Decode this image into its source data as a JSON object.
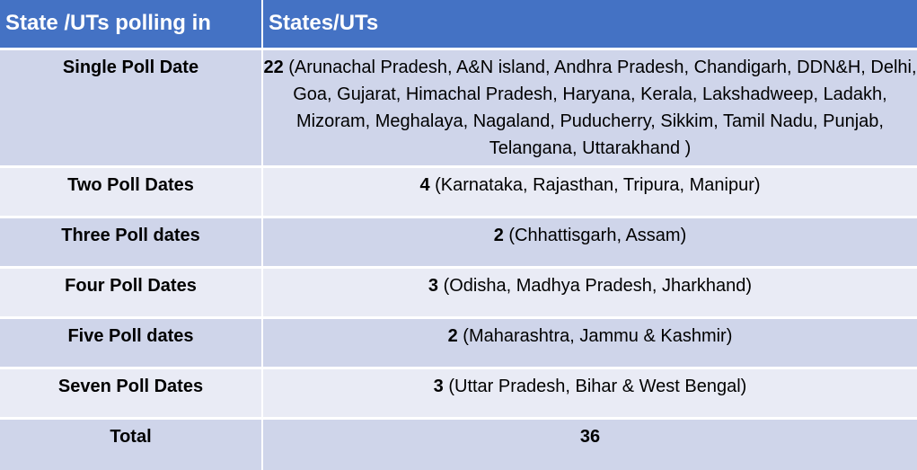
{
  "header": {
    "col1": "State /UTs  polling in",
    "col2": "States/UTs"
  },
  "rows": [
    {
      "category": "Single Poll Date",
      "count": "22",
      "states": " (Arunachal Pradesh, A&N island, Andhra Pradesh, Chandigarh, DDN&H, Delhi, Goa, Gujarat, Himachal Pradesh, Haryana, Kerala, Lakshadweep, Ladakh, Mizoram, Meghalaya, Nagaland, Puducherry, Sikkim, Tamil Nadu, Punjab, Telangana, Uttarakhand )"
    },
    {
      "category": "Two Poll Dates",
      "count": "4",
      "states": " (Karnataka, Rajasthan, Tripura, Manipur)"
    },
    {
      "category": "Three Poll dates",
      "count": "2",
      "states": " (Chhattisgarh, Assam)"
    },
    {
      "category": "Four Poll Dates",
      "count": "3",
      "states": " (Odisha, Madhya Pradesh, Jharkhand)"
    },
    {
      "category": "Five Poll dates",
      "count": "2",
      "states": " (Maharashtra, Jammu & Kashmir)"
    },
    {
      "category": "Seven Poll Dates",
      "count": "3",
      "states": " (Uttar Pradesh, Bihar & West Bengal)"
    },
    {
      "category": "Total",
      "count": "36",
      "states": ""
    }
  ],
  "colors": {
    "header": "#4472c4",
    "row_dark": "#cfd5ea",
    "row_light": "#e9ebf5"
  }
}
